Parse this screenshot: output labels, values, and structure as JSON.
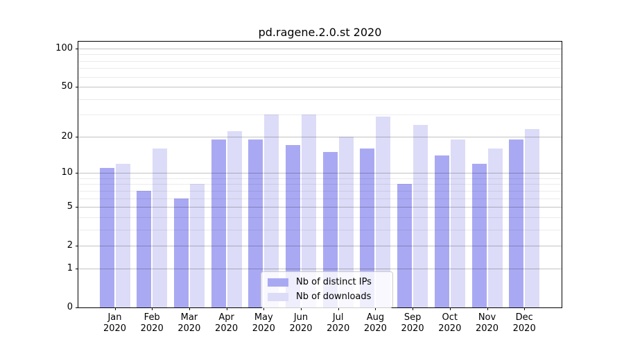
{
  "chart_data": {
    "type": "bar",
    "title": "pd.ragene.2.0.st 2020",
    "x_axis": {
      "months": [
        "Jan",
        "Feb",
        "Mar",
        "Apr",
        "May",
        "Jun",
        "Jul",
        "Aug",
        "Sep",
        "Oct",
        "Nov",
        "Dec"
      ],
      "year_label": "2020"
    },
    "y_axis": {
      "scale": "log10(1+y)",
      "tick_labels": [
        0,
        1,
        2,
        5,
        10,
        20,
        50,
        100
      ],
      "minor_gridlines": [
        3,
        4,
        6,
        7,
        8,
        9,
        30,
        40,
        60,
        70,
        80,
        90
      ],
      "range": [
        0,
        113
      ]
    },
    "series": [
      {
        "name": "Nb of distinct IPs",
        "color": "#a9a9f3",
        "values": [
          11,
          7,
          6,
          19,
          19,
          17,
          15,
          16,
          8,
          14,
          12,
          19
        ]
      },
      {
        "name": "Nb of downloads",
        "color": "#dcdcf8",
        "values": [
          12,
          16,
          8,
          22,
          30,
          30,
          20,
          29,
          25,
          19,
          16,
          23
        ]
      }
    ],
    "grid": true,
    "legend_position": "lower center"
  },
  "colors": {
    "axis": "#000000",
    "major_grid": "rgba(0,0,0,0.24)",
    "minor_grid": "rgba(0,0,0,0.08)",
    "legend_bg": "rgba(255,255,255,0.8)",
    "legend_border": "#cccccc"
  }
}
